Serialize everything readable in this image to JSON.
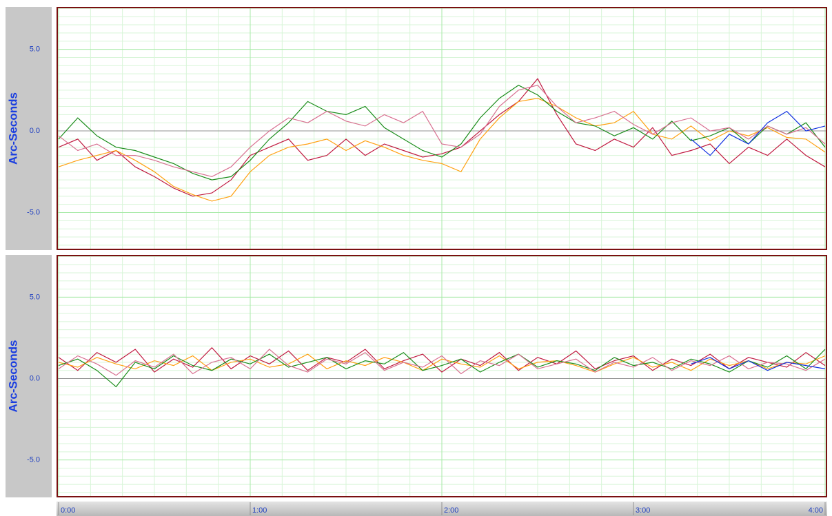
{
  "chart_data": [
    {
      "type": "line",
      "ylabel": "Arc-Seconds",
      "x": [
        0,
        6,
        12,
        18,
        24,
        30,
        36,
        42,
        48,
        54,
        60,
        66,
        72,
        78,
        84,
        90,
        96,
        102,
        108,
        114,
        120,
        126,
        132,
        138,
        144,
        150,
        156,
        162,
        168,
        174,
        180,
        186,
        192,
        198,
        204,
        210,
        216,
        222,
        228,
        234,
        240
      ],
      "xlim": [
        0,
        240
      ],
      "xticks": [
        {
          "value": 0,
          "label": "0:00"
        },
        {
          "value": 60,
          "label": "1:00"
        },
        {
          "value": 120,
          "label": "2:00"
        },
        {
          "value": 180,
          "label": "3:00"
        },
        {
          "value": 240,
          "label": "4:00"
        }
      ],
      "ylim": [
        -7.3,
        7.6
      ],
      "yticks": [
        {
          "value": -5,
          "label": "-5.0"
        },
        {
          "value": 0,
          "label": "0.0"
        },
        {
          "value": 5,
          "label": "5.0"
        }
      ],
      "grid": true,
      "series": [
        {
          "color": "#c01a40",
          "values": [
            -1.0,
            -0.5,
            -1.8,
            -1.2,
            -2.2,
            -2.8,
            -3.5,
            -4.0,
            -3.8,
            -3.0,
            -1.5,
            -1.0,
            -0.5,
            -1.8,
            -1.5,
            -0.5,
            -1.5,
            -0.8,
            -1.2,
            -1.6,
            -1.4,
            -1.0,
            0.0,
            1.0,
            1.8,
            3.2,
            1.0,
            -0.8,
            -1.2,
            -0.5,
            -1.0,
            0.2,
            -1.5,
            -1.2,
            -0.8,
            -2.0,
            -1.0,
            -1.5,
            -0.5,
            -1.5,
            -2.2
          ]
        },
        {
          "color": "#ffa010",
          "values": [
            -2.2,
            -1.8,
            -1.5,
            -1.2,
            -1.8,
            -2.5,
            -3.4,
            -3.9,
            -4.3,
            -4.0,
            -2.5,
            -1.5,
            -1.0,
            -0.8,
            -0.5,
            -1.2,
            -0.6,
            -1.0,
            -1.5,
            -1.8,
            -2.0,
            -2.5,
            -0.5,
            0.8,
            1.8,
            2.0,
            1.5,
            0.8,
            0.3,
            0.5,
            1.2,
            -0.2,
            -0.5,
            0.3,
            -0.6,
            0.0,
            -0.3,
            0.2,
            -0.4,
            -0.5,
            -1.3
          ]
        },
        {
          "color": "#1a8c1a",
          "values": [
            -0.5,
            0.8,
            -0.3,
            -1.0,
            -1.2,
            -1.6,
            -2.0,
            -2.6,
            -3.0,
            -2.8,
            -1.8,
            -0.5,
            0.5,
            1.8,
            1.2,
            1.0,
            1.5,
            0.2,
            -0.5,
            -1.2,
            -1.6,
            -0.8,
            0.8,
            2.0,
            2.8,
            2.2,
            1.2,
            0.5,
            0.3,
            -0.3,
            0.2,
            -0.5,
            0.6,
            -0.6,
            -0.3,
            0.2,
            -0.8,
            0.3,
            -0.2,
            0.5,
            -1.0
          ]
        },
        {
          "color": "#d87090",
          "values": [
            -0.3,
            -1.2,
            -0.8,
            -1.5,
            -1.5,
            -1.8,
            -2.2,
            -2.5,
            -2.8,
            -2.2,
            -1.0,
            0.0,
            0.8,
            0.5,
            1.2,
            0.6,
            0.3,
            1.0,
            0.5,
            1.2,
            -0.8,
            -1.0,
            -0.2,
            1.5,
            2.5,
            2.8,
            1.5,
            0.5,
            0.8,
            1.2,
            0.4,
            -0.2,
            0.5,
            0.8,
            0.0,
            0.2,
            -0.5,
            0.3,
            -0.2,
            0.2,
            -0.8
          ]
        },
        {
          "color": "#1030e0",
          "values": [
            null,
            null,
            null,
            null,
            null,
            null,
            null,
            null,
            null,
            null,
            null,
            null,
            null,
            null,
            null,
            null,
            null,
            null,
            null,
            null,
            null,
            null,
            null,
            null,
            null,
            null,
            null,
            null,
            null,
            null,
            null,
            null,
            null,
            -0.5,
            -1.5,
            -0.2,
            -0.8,
            0.5,
            1.2,
            0.0,
            0.3
          ]
        }
      ]
    },
    {
      "type": "line",
      "ylabel": "Arc-Seconds",
      "x": [
        0,
        6,
        12,
        18,
        24,
        30,
        36,
        42,
        48,
        54,
        60,
        66,
        72,
        78,
        84,
        90,
        96,
        102,
        108,
        114,
        120,
        126,
        132,
        138,
        144,
        150,
        156,
        162,
        168,
        174,
        180,
        186,
        192,
        198,
        204,
        210,
        216,
        222,
        228,
        234,
        240
      ],
      "xlim": [
        0,
        240
      ],
      "xticks": [
        {
          "value": 0,
          "label": "0:00"
        },
        {
          "value": 60,
          "label": "1:00"
        },
        {
          "value": 120,
          "label": "2:00"
        },
        {
          "value": 180,
          "label": "3:00"
        },
        {
          "value": 240,
          "label": "4:00"
        }
      ],
      "ylim": [
        -7.3,
        7.6
      ],
      "yticks": [
        {
          "value": -5,
          "label": "-5.0"
        },
        {
          "value": 0,
          "label": "0.0"
        },
        {
          "value": 5,
          "label": "5.0"
        }
      ],
      "grid": true,
      "series": [
        {
          "color": "#c01a40",
          "values": [
            1.3,
            0.5,
            1.6,
            1.0,
            1.8,
            0.4,
            1.2,
            0.7,
            1.9,
            0.6,
            1.4,
            0.9,
            1.7,
            0.5,
            1.3,
            1.0,
            1.8,
            0.6,
            1.1,
            1.5,
            0.4,
            1.2,
            0.8,
            1.6,
            0.5,
            1.3,
            0.9,
            1.7,
            0.6,
            1.1,
            1.4,
            0.5,
            1.2,
            0.8,
            1.5,
            0.6,
            1.3,
            1.0,
            0.7,
            1.6,
            0.8
          ]
        },
        {
          "color": "#ffa010",
          "values": [
            1.0,
            0.7,
            1.3,
            0.9,
            0.6,
            1.1,
            0.8,
            1.4,
            0.5,
            1.0,
            1.2,
            0.7,
            0.9,
            1.5,
            0.6,
            1.1,
            0.8,
            1.3,
            1.0,
            0.5,
            1.2,
            0.9,
            0.7,
            1.4,
            0.6,
            1.0,
            1.1,
            0.8,
            0.4,
            0.9,
            1.3,
            0.7,
            1.0,
            0.5,
            1.2,
            0.8,
            1.1,
            0.6,
            1.0,
            0.9,
            1.4
          ]
        },
        {
          "color": "#1a8c1a",
          "values": [
            0.8,
            1.2,
            0.5,
            -0.5,
            1.0,
            0.6,
            1.4,
            0.8,
            0.5,
            1.2,
            0.9,
            1.5,
            0.7,
            1.0,
            1.3,
            0.6,
            1.1,
            0.9,
            1.6,
            0.5,
            0.8,
            1.2,
            0.4,
            1.0,
            1.5,
            0.7,
            1.1,
            0.9,
            0.5,
            1.3,
            0.8,
            1.0,
            0.6,
            1.2,
            0.9,
            0.4,
            1.1,
            0.7,
            1.4,
            0.6,
            1.8
          ]
        },
        {
          "color": "#d87090",
          "values": [
            0.6,
            1.4,
            0.9,
            0.2,
            1.1,
            0.7,
            1.5,
            0.3,
            1.0,
            1.3,
            0.6,
            1.8,
            0.8,
            0.4,
            1.2,
            0.9,
            1.6,
            0.5,
            1.0,
            0.7,
            1.4,
            0.3,
            1.1,
            0.8,
            1.5,
            0.6,
            0.9,
            1.2,
            0.4,
            1.0,
            0.7,
            1.3,
            0.5,
            1.1,
            0.8,
            1.4,
            0.6,
            1.0,
            0.9,
            0.5,
            1.2
          ]
        },
        {
          "color": "#1030e0",
          "values": [
            null,
            null,
            null,
            null,
            null,
            null,
            null,
            null,
            null,
            null,
            null,
            null,
            null,
            null,
            null,
            null,
            null,
            null,
            null,
            null,
            null,
            null,
            null,
            null,
            null,
            null,
            null,
            null,
            null,
            null,
            null,
            null,
            null,
            0.9,
            1.3,
            0.6,
            1.1,
            0.5,
            1.0,
            0.8,
            0.6
          ]
        }
      ]
    }
  ]
}
